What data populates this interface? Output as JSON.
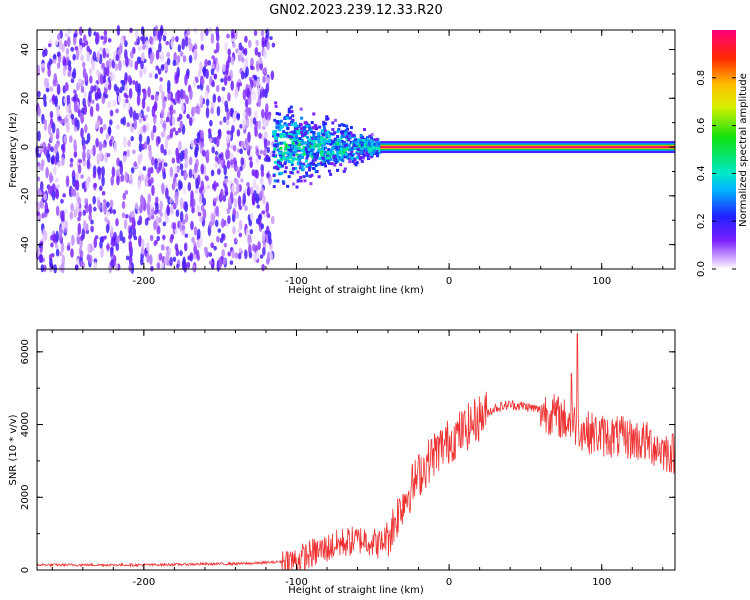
{
  "title": "GN02.2023.239.12.33.R20",
  "chart_data": [
    {
      "type": "heatmap",
      "name": "spectrogram",
      "xlabel": "Height of straight line (km)",
      "ylabel": "Frequency (Hz)",
      "xlim": [
        -270,
        148
      ],
      "ylim": [
        -50,
        48
      ],
      "xticks": [
        -200,
        -100,
        0,
        100
      ],
      "yticks": [
        -40,
        -20,
        0,
        20,
        40
      ],
      "colorbar": {
        "label": "Normalized spectral amplitude",
        "range": [
          0,
          1
        ],
        "ticks": [
          0.0,
          0.2,
          0.4,
          0.6,
          0.8
        ]
      },
      "regions": [
        {
          "x_range": [
            -270,
            -115
          ],
          "description": "broadband noise",
          "amplitude": 0.1
        },
        {
          "x_range": [
            -115,
            -45
          ],
          "description": "spreading signal",
          "amplitude": 0.3
        },
        {
          "x_range": [
            -45,
            148
          ],
          "description": "tone near 0 Hz",
          "amplitude": 1.0
        }
      ]
    },
    {
      "type": "line",
      "name": "snr",
      "xlabel": "Height of straight line (km)",
      "ylabel": "SNR (10 * v/v)",
      "xlim": [
        -270,
        148
      ],
      "ylim": [
        0,
        6600
      ],
      "xticks": [
        -200,
        -100,
        0,
        100
      ],
      "yticks": [
        0,
        2000,
        4000,
        6000
      ],
      "color": "#ee3333",
      "trend": {
        "x": [
          -270,
          -200,
          -130,
          -100,
          -90,
          -70,
          -55,
          -45,
          -38,
          -30,
          -20,
          -10,
          0,
          10,
          20,
          30,
          40,
          50,
          60,
          70,
          80,
          90,
          100,
          110,
          120,
          130,
          140,
          148
        ],
        "y": [
          140,
          140,
          180,
          250,
          450,
          750,
          850,
          700,
          1100,
          1900,
          2600,
          3200,
          3550,
          3850,
          4200,
          4450,
          4550,
          4500,
          4400,
          4250,
          4050,
          3800,
          3700,
          3650,
          3600,
          3500,
          3300,
          3200
        ]
      },
      "peaks": [
        {
          "x": 84,
          "y": 6500
        },
        {
          "x": 80,
          "y": 5400
        }
      ]
    }
  ]
}
